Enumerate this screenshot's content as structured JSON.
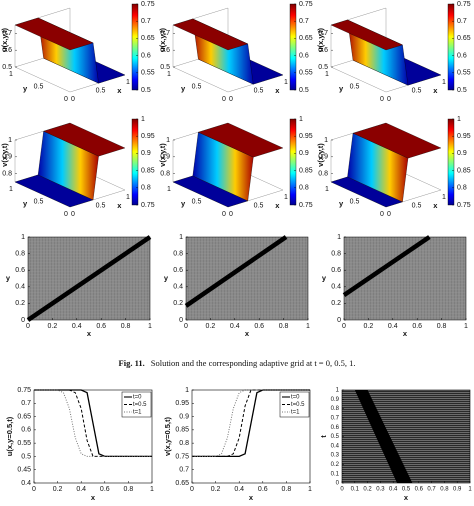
{
  "surfaces": [
    {
      "zlabel": "u(x,y,t)",
      "xlabel": "x",
      "ylabel": "y",
      "xticks": [
        0,
        0.5,
        1
      ],
      "yticks": [
        0,
        0.5,
        1
      ],
      "zticks": [
        0.5,
        0.6,
        0.7
      ],
      "colorbar": [
        0.5,
        0.55,
        0.6,
        0.65,
        0.7,
        0.75
      ]
    },
    {
      "zlabel": "u(x,y,t)",
      "xlabel": "x",
      "ylabel": "y",
      "xticks": [
        0,
        0.5,
        1
      ],
      "yticks": [
        0,
        0.5,
        1
      ],
      "zticks": [
        0.5,
        0.6,
        0.7
      ],
      "colorbar": [
        0.5,
        0.55,
        0.6,
        0.65,
        0.7,
        0.75
      ]
    },
    {
      "zlabel": "u(x,y,t)",
      "xlabel": "x",
      "ylabel": "y",
      "xticks": [
        0,
        0.5,
        1
      ],
      "yticks": [
        0,
        0.5,
        1
      ],
      "zticks": [
        0.5,
        0.6,
        0.7
      ],
      "colorbar": [
        0.5,
        0.55,
        0.6,
        0.65,
        0.7,
        0.75
      ]
    },
    {
      "zlabel": "v(x,y,t)",
      "xlabel": "x",
      "ylabel": "y",
      "xticks": [
        0,
        0.5,
        1
      ],
      "yticks": [
        0,
        0.5,
        1
      ],
      "zticks": [
        0.8,
        0.9,
        1
      ],
      "colorbar": [
        0.75,
        0.8,
        0.85,
        0.9,
        0.95,
        1
      ]
    },
    {
      "zlabel": "v(x,y,t)",
      "xlabel": "x",
      "ylabel": "y",
      "xticks": [
        0,
        0.5,
        1
      ],
      "yticks": [
        0,
        0.5,
        1
      ],
      "zticks": [
        0.8,
        0.9,
        1
      ],
      "colorbar": [
        0.75,
        0.8,
        0.85,
        0.9,
        0.95,
        1
      ]
    },
    {
      "zlabel": "v(x,y,t)",
      "xlabel": "x",
      "ylabel": "y",
      "xticks": [
        0,
        0.5,
        1
      ],
      "yticks": [
        0,
        0.5,
        1
      ],
      "zticks": [
        0.8,
        0.9,
        1
      ],
      "colorbar": [
        0.75,
        0.8,
        0.85,
        0.9,
        0.95,
        1
      ]
    }
  ],
  "grids": [
    {
      "xlabel": "x",
      "ylabel": "y",
      "xlim": [
        0,
        1
      ],
      "ylim": [
        0,
        1
      ],
      "xticks": [
        0,
        0.2,
        0.4,
        0.6,
        0.8,
        1
      ],
      "yticks": [
        0,
        0.2,
        0.4,
        0.6,
        0.8,
        1
      ],
      "band_x": [
        0,
        1
      ],
      "band_y": [
        0,
        1
      ]
    },
    {
      "xlabel": "x",
      "ylabel": "y",
      "xlim": [
        0,
        1
      ],
      "ylim": [
        0,
        1
      ],
      "xticks": [
        0,
        0.2,
        0.4,
        0.6,
        0.8,
        1
      ],
      "yticks": [
        0,
        0.2,
        0.4,
        0.6,
        0.8,
        1
      ],
      "band_x": [
        0,
        0.82
      ],
      "band_y": [
        0.17,
        1
      ]
    },
    {
      "xlabel": "x",
      "ylabel": "y",
      "xlim": [
        0,
        1
      ],
      "ylim": [
        0,
        1
      ],
      "xticks": [
        0,
        0.2,
        0.4,
        0.6,
        0.8,
        1
      ],
      "yticks": [
        0,
        0.2,
        0.4,
        0.6,
        0.8,
        1
      ],
      "band_x": [
        0,
        0.7
      ],
      "band_y": [
        0.3,
        1
      ]
    }
  ],
  "caption": {
    "label": "Fig. 11.",
    "text": "Solution and the corresponding adaptive grid at t = 0, 0.5, 1."
  },
  "chart_data": [
    {
      "type": "line",
      "xlabel": "x",
      "ylabel": "u(x,y=0.5,t)",
      "xlim": [
        0,
        1
      ],
      "ylim": [
        0.4,
        0.75
      ],
      "xticks": [
        0,
        0.2,
        0.4,
        0.6,
        0.8,
        1
      ],
      "yticks": [
        0.4,
        0.45,
        0.5,
        0.55,
        0.6,
        0.65,
        0.7,
        0.75
      ],
      "x": [
        0,
        0.1,
        0.2,
        0.25,
        0.3,
        0.35,
        0.4,
        0.45,
        0.5,
        0.55,
        0.6,
        0.7,
        0.8,
        0.9,
        1
      ],
      "series": [
        {
          "name": "t=0",
          "color": "#000000",
          "dash": "solid",
          "values": [
            0.75,
            0.75,
            0.75,
            0.75,
            0.75,
            0.75,
            0.75,
            0.74,
            0.625,
            0.51,
            0.5,
            0.5,
            0.5,
            0.5,
            0.5
          ]
        },
        {
          "name": "t=0.5",
          "color": "#000000",
          "dash": "dashed",
          "values": [
            0.75,
            0.75,
            0.75,
            0.75,
            0.75,
            0.74,
            0.68,
            0.56,
            0.5,
            0.5,
            0.5,
            0.5,
            0.5,
            0.5,
            0.5
          ]
        },
        {
          "name": "t=1",
          "color": "#777777",
          "dash": "dotted",
          "values": [
            0.75,
            0.75,
            0.75,
            0.74,
            0.68,
            0.57,
            0.51,
            0.5,
            0.5,
            0.5,
            0.5,
            0.5,
            0.5,
            0.5,
            0.5
          ]
        }
      ]
    },
    {
      "type": "line",
      "xlabel": "x",
      "ylabel": "v(x,y=0.5,t)",
      "xlim": [
        0,
        1
      ],
      "ylim": [
        0.65,
        1
      ],
      "xticks": [
        0,
        0.2,
        0.4,
        0.6,
        0.8,
        1
      ],
      "yticks": [
        0.65,
        0.7,
        0.75,
        0.8,
        0.85,
        0.9,
        0.95,
        1
      ],
      "x": [
        0,
        0.1,
        0.2,
        0.25,
        0.3,
        0.35,
        0.4,
        0.45,
        0.5,
        0.55,
        0.6,
        0.7,
        0.8,
        0.9,
        1
      ],
      "series": [
        {
          "name": "t=0",
          "color": "#000000",
          "dash": "solid",
          "values": [
            0.75,
            0.75,
            0.75,
            0.75,
            0.75,
            0.75,
            0.75,
            0.76,
            0.875,
            0.99,
            1,
            1,
            1,
            1,
            1
          ]
        },
        {
          "name": "t=0.5",
          "color": "#000000",
          "dash": "dashed",
          "values": [
            0.75,
            0.75,
            0.75,
            0.75,
            0.75,
            0.76,
            0.82,
            0.94,
            1,
            1,
            1,
            1,
            1,
            1,
            1
          ]
        },
        {
          "name": "t=1",
          "color": "#777777",
          "dash": "dotted",
          "values": [
            0.75,
            0.75,
            0.75,
            0.76,
            0.82,
            0.93,
            0.99,
            1,
            1,
            1,
            1,
            1,
            1,
            1,
            1
          ]
        }
      ]
    },
    {
      "type": "band",
      "xlabel": "x",
      "ylabel": "t",
      "xlim": [
        0,
        1
      ],
      "ylim": [
        0,
        1
      ],
      "xticks": [
        0,
        0.1,
        0.2,
        0.3,
        0.4,
        0.5,
        0.6,
        0.7,
        0.8,
        0.9,
        1
      ],
      "yticks": [
        0,
        0.1,
        0.2,
        0.3,
        0.4,
        0.5,
        0.6,
        0.7,
        0.8,
        0.9,
        1
      ],
      "t": [
        0,
        1
      ],
      "band_left": [
        0.43,
        0.1
      ],
      "band_right": [
        0.55,
        0.2
      ]
    }
  ]
}
